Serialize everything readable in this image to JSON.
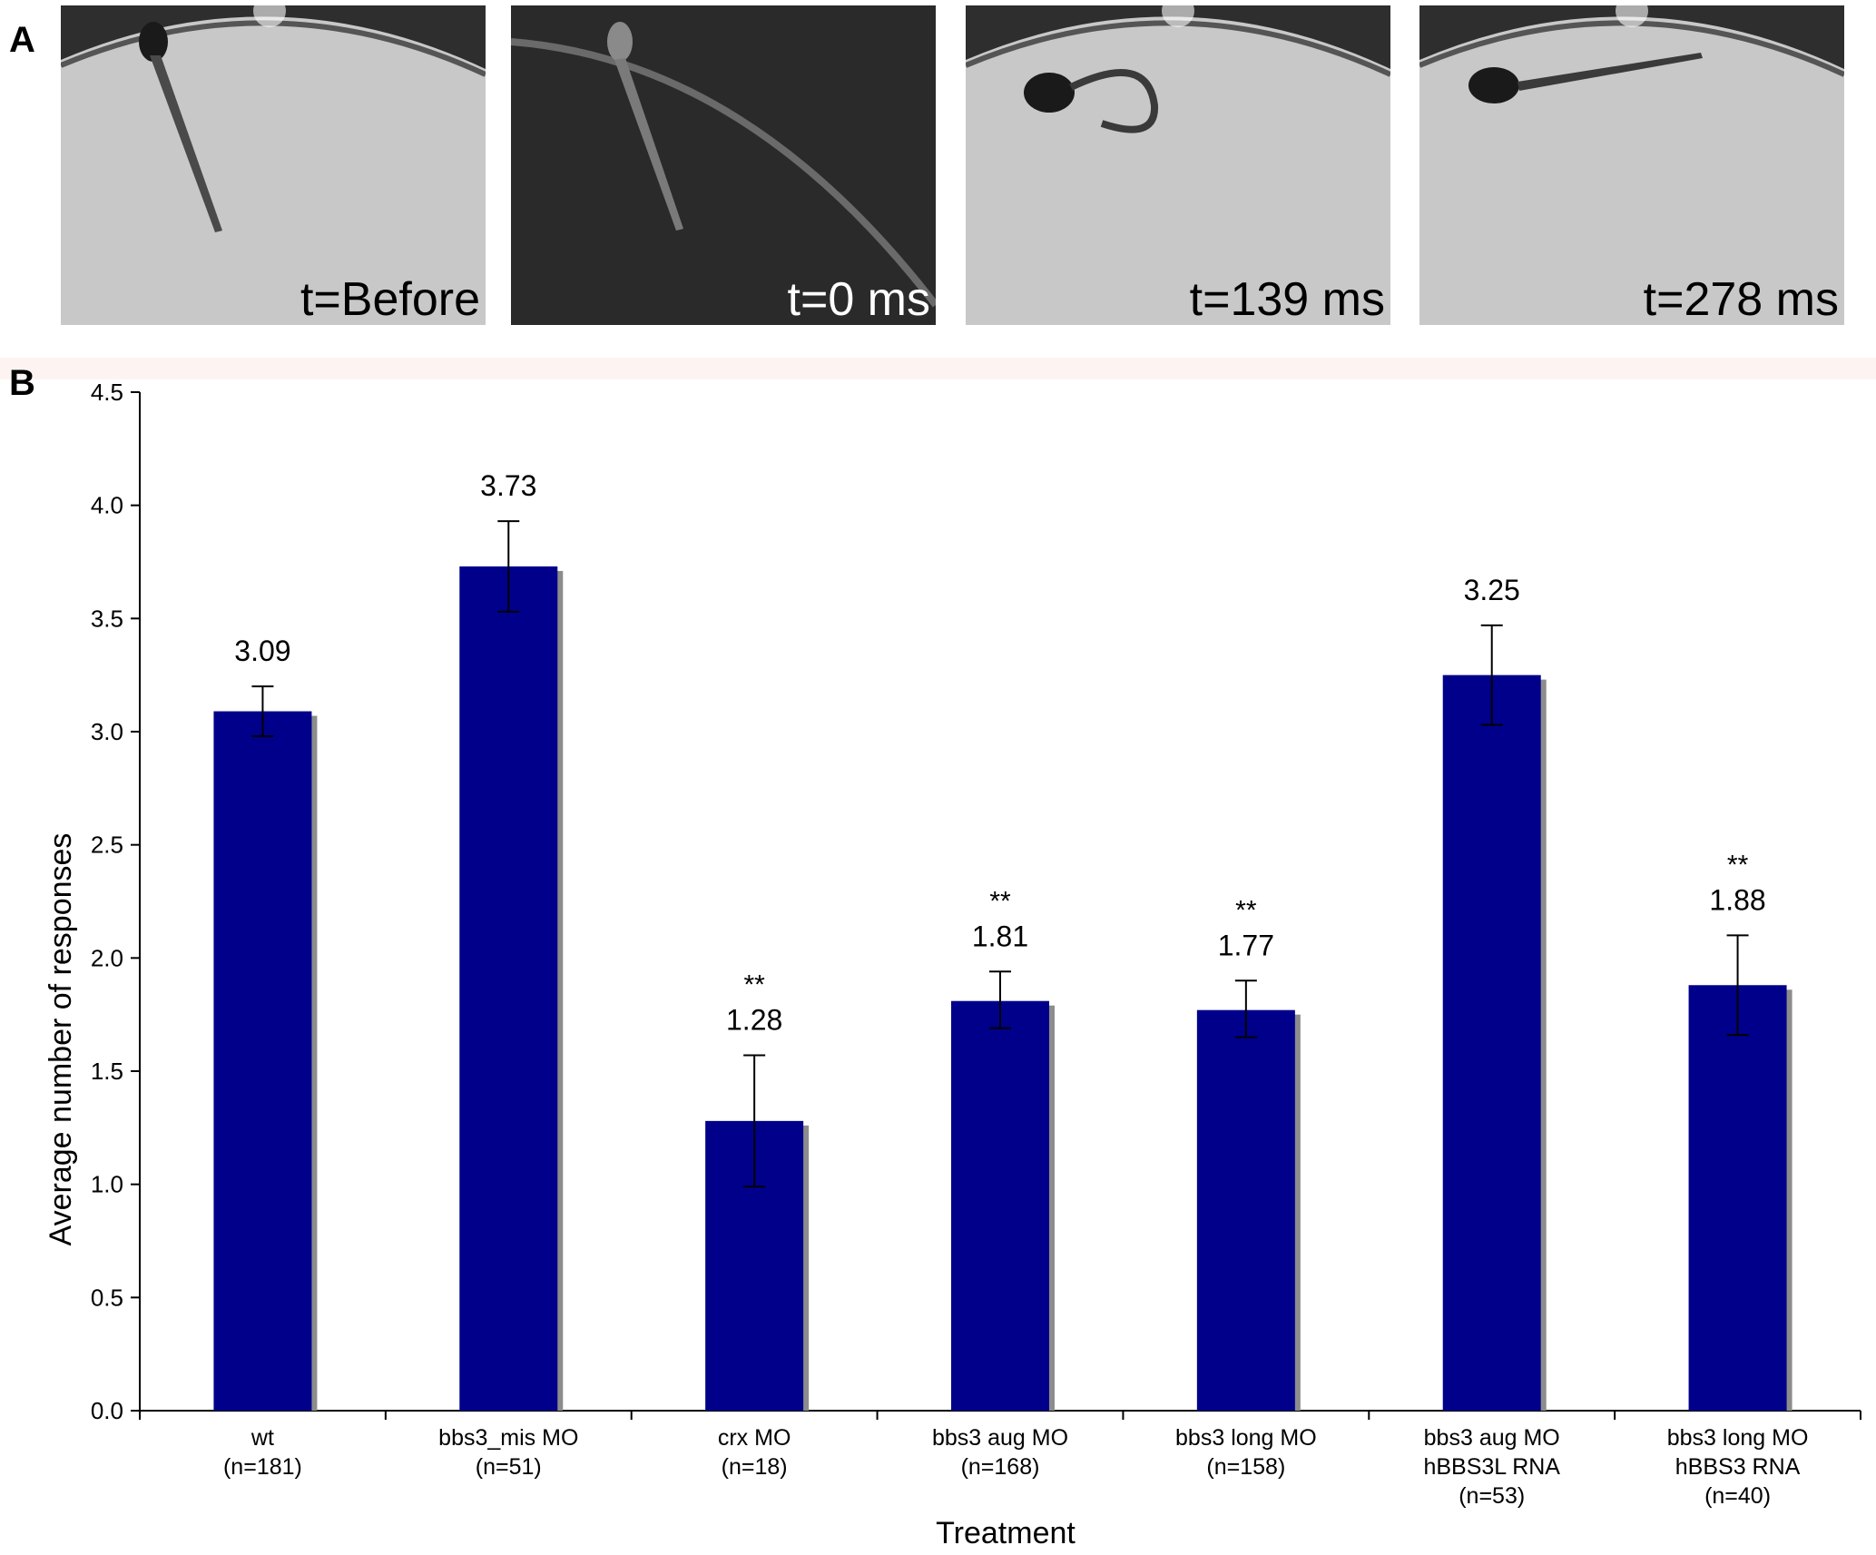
{
  "panels": {
    "a_label": "A",
    "b_label": "B"
  },
  "frames": [
    {
      "time_label": "t=Before",
      "theme": "light"
    },
    {
      "time_label": "t=0 ms",
      "theme": "dark"
    },
    {
      "time_label": "t=139 ms",
      "theme": "light"
    },
    {
      "time_label": "t=278 ms",
      "theme": "light"
    }
  ],
  "colors": {
    "bar": "#00008b",
    "bar_shadow": "#8c8c8c",
    "frame_light": "#c9c9c9",
    "frame_dark": "#2a2a2a"
  },
  "chart_data": {
    "type": "bar",
    "title": "",
    "xlabel": "Treatment",
    "ylabel": "Average number of responses",
    "ylim": [
      0,
      4.5
    ],
    "yticks": [
      "0.0",
      "0.5",
      "1.0",
      "1.5",
      "2.0",
      "2.5",
      "3.0",
      "3.5",
      "4.0",
      "4.5"
    ],
    "grid": false,
    "categories": [
      {
        "lines": [
          "wt",
          "(n=181)"
        ]
      },
      {
        "lines": [
          "bbs3_mis MO",
          "(n=51)"
        ]
      },
      {
        "lines": [
          "crx MO",
          "(n=18)"
        ]
      },
      {
        "lines": [
          "bbs3 aug MO",
          "(n=168)"
        ]
      },
      {
        "lines": [
          "bbs3 long MO",
          "(n=158)"
        ]
      },
      {
        "lines": [
          "bbs3 aug  MO",
          "hBBS3L RNA",
          "(n=53)"
        ]
      },
      {
        "lines": [
          "bbs3 long MO",
          "hBBS3 RNA",
          "(n=40)"
        ]
      }
    ],
    "values": [
      3.09,
      3.73,
      1.28,
      1.81,
      1.77,
      3.25,
      1.88
    ],
    "value_labels": [
      "3.09",
      "3.73",
      "1.28",
      "1.81",
      "1.77",
      "3.25",
      "1.88"
    ],
    "error_low": [
      2.98,
      3.53,
      0.99,
      1.69,
      1.65,
      3.03,
      1.66
    ],
    "error_high": [
      3.2,
      3.93,
      1.57,
      1.94,
      1.9,
      3.47,
      2.1
    ],
    "significance": [
      "",
      "",
      "**",
      "**",
      "**",
      "",
      "**"
    ]
  }
}
